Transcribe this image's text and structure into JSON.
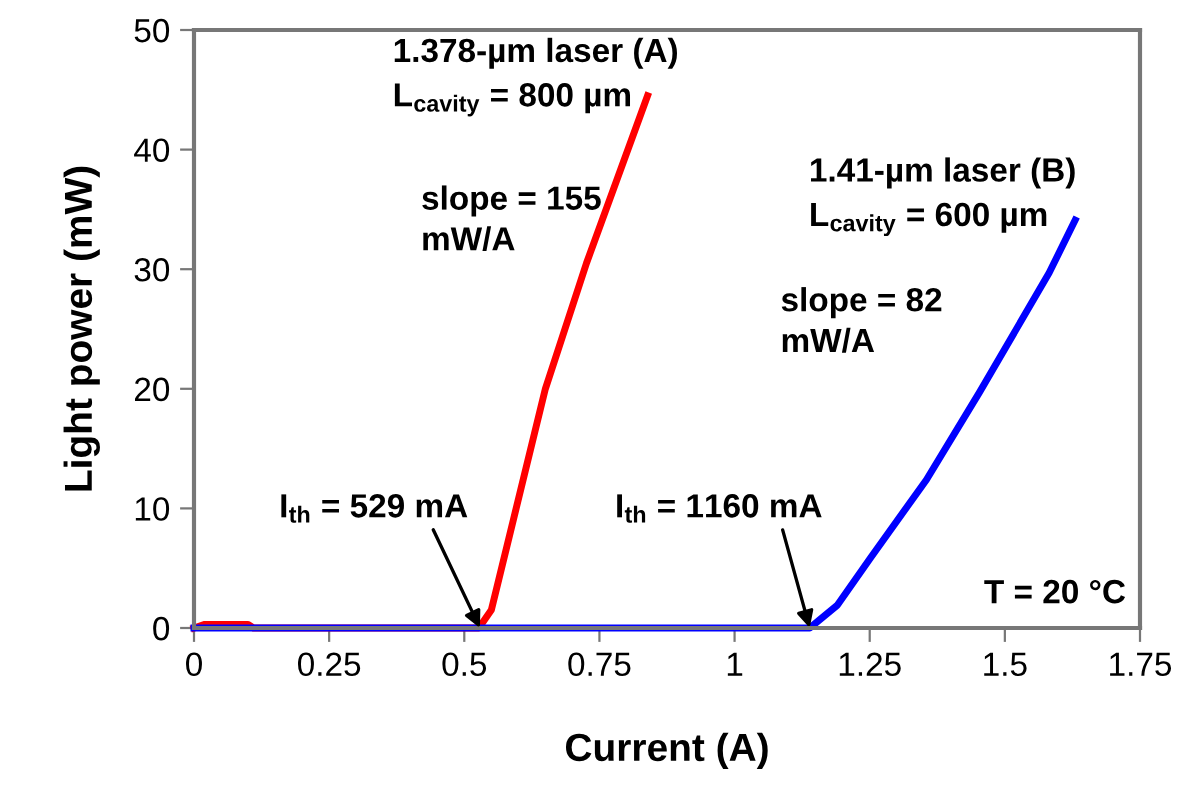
{
  "chart_data": {
    "type": "line",
    "xlabel": "Current (A)",
    "ylabel": "Light power (mW)",
    "xlim": [
      0,
      1.75
    ],
    "xticks": [
      0,
      0.25,
      0.5,
      0.75,
      1,
      1.25,
      1.5,
      1.75
    ],
    "ylim": [
      0,
      50
    ],
    "yticks": [
      0,
      10,
      20,
      30,
      40,
      50
    ],
    "grid": false,
    "legend": false,
    "marker": "none",
    "line_style": "solid",
    "series": [
      {
        "color": "#ff0000",
        "x": [
          0,
          0.02,
          0.1,
          0.11,
          0.527,
          0.55,
          0.65,
          0.726,
          0.839
        ],
        "values": [
          0,
          0.3,
          0.3,
          0,
          0,
          1.5,
          20,
          30.5,
          44.5
        ]
      },
      {
        "color": "#0000ff",
        "x": [
          0,
          1.139,
          1.19,
          1.252,
          1.355,
          1.453,
          1.582,
          1.63
        ],
        "values": [
          0,
          0,
          1.9,
          5.9,
          12.4,
          19.7,
          29.7,
          34.1
        ]
      }
    ],
    "annotations": [
      {
        "text": "I$_{th}$ = 529 mA",
        "x": 0.529,
        "y": 0
      },
      {
        "text": "I$_{th}$ = 1160 mA",
        "x": 1.139,
        "y": 0
      },
      "1.378-µm laser (A)",
      "L$_{cavity}$ = 800 µm",
      "slope = 155\nmW/A",
      "1.41-µm laser (B)",
      "L$_{cavity}$ = 600 µm",
      "slope = 82\nmW/A",
      "T = 20 °C"
    ]
  }
}
